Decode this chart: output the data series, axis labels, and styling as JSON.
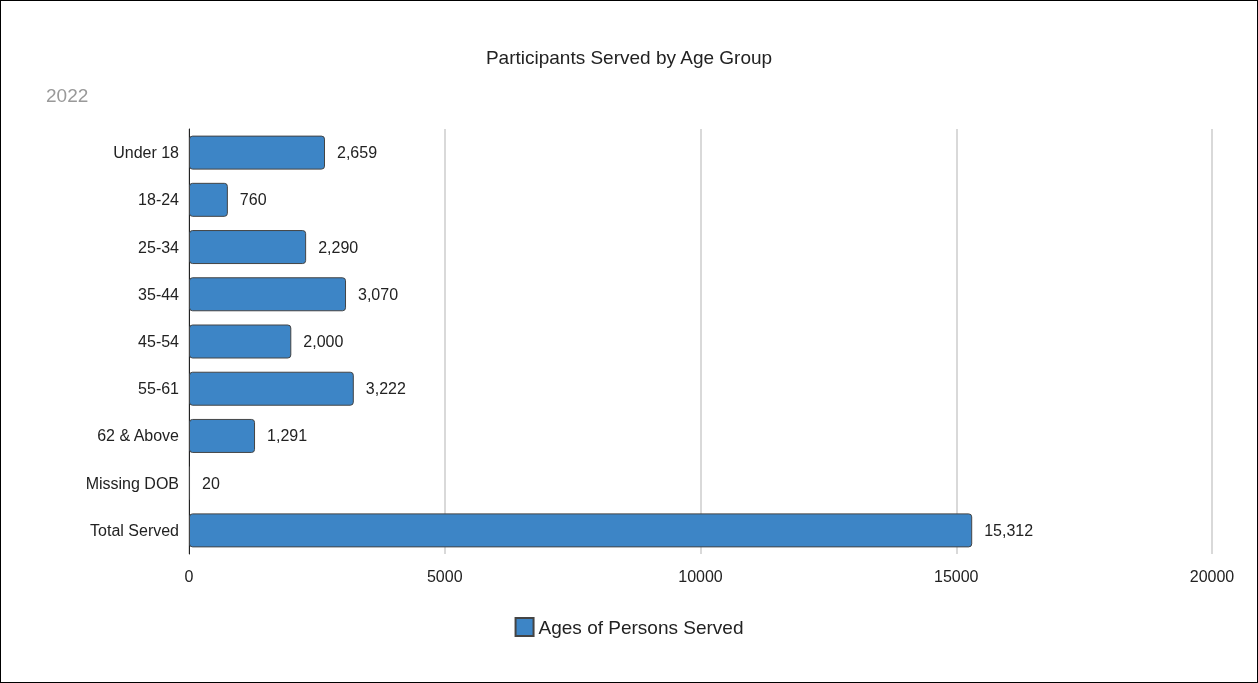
{
  "chart_data": {
    "type": "bar",
    "title": "Participants Served by Age Group",
    "subtitle": "2022",
    "orientation": "horizontal",
    "categories": [
      "Under 18",
      "18-24",
      "25-34",
      "35-44",
      "45-54",
      "55-61",
      "62 & Above",
      "Missing DOB",
      "Total Served"
    ],
    "series": [
      {
        "name": "Ages of Persons Served",
        "color": "#3d85c6",
        "values": [
          2659,
          760,
          2290,
          3070,
          2000,
          3222,
          1291,
          20,
          15312
        ],
        "value_labels": [
          "2,659",
          "760",
          "2,290",
          "3,070",
          "2,000",
          "3,222",
          "1,291",
          "20",
          "15,312"
        ]
      }
    ],
    "xlim": [
      0,
      20000
    ],
    "xticks": [
      0,
      5000,
      10000,
      15000,
      20000
    ],
    "grid": "x",
    "legend": "bottom"
  }
}
